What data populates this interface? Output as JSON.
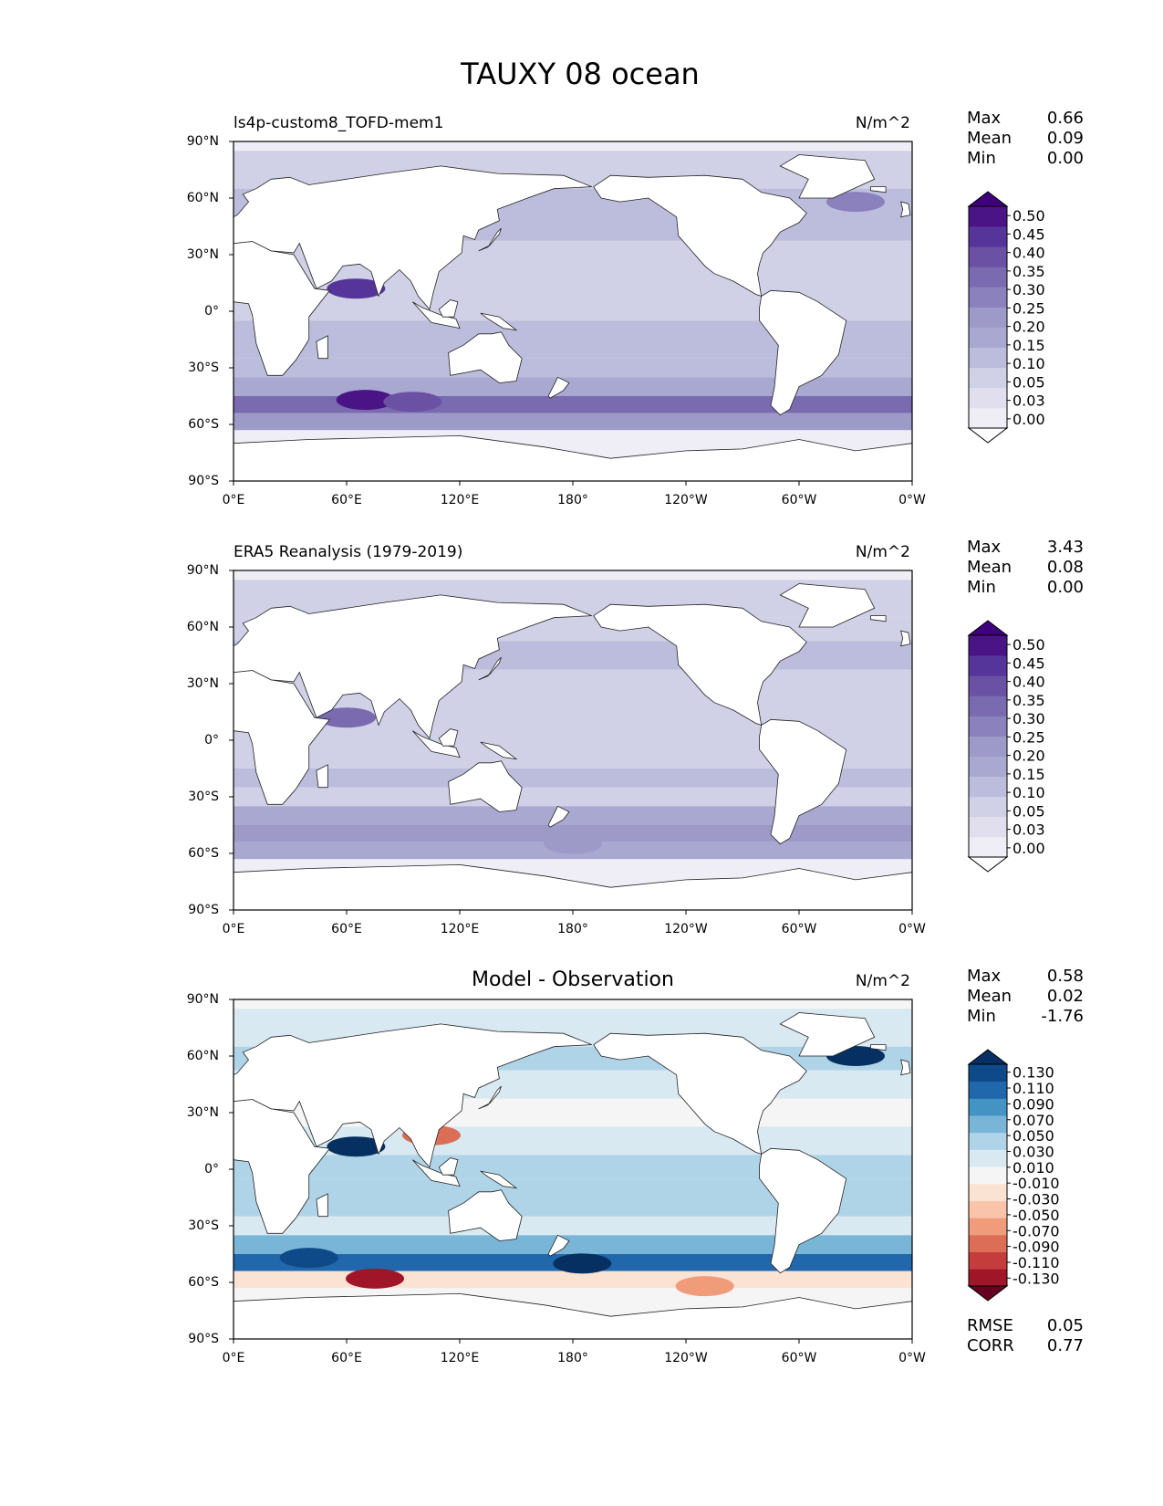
{
  "figure": {
    "title": "TAUXY 08 ocean"
  },
  "chart_data": [
    {
      "type": "heatmap",
      "title": "ls4p-custom8_TOFD-mem1",
      "units": "N/m^2",
      "x_ticks": [
        "0°E",
        "60°E",
        "120°E",
        "180°",
        "120°W",
        "60°W",
        "0°W"
      ],
      "y_ticks": [
        "90°N",
        "60°N",
        "30°N",
        "0°",
        "30°S",
        "60°S",
        "90°S"
      ],
      "xlim": [
        0,
        360
      ],
      "ylim": [
        -90,
        90
      ],
      "stats": {
        "max_label": "Max",
        "mean_label": "Mean",
        "min_label": "Min",
        "max": "0.66",
        "mean": "0.09",
        "min": "0.00"
      },
      "colorbar": {
        "levels": [
          "0.00",
          "0.03",
          "0.05",
          "0.10",
          "0.15",
          "0.20",
          "0.25",
          "0.30",
          "0.35",
          "0.40",
          "0.45",
          "0.50"
        ],
        "colors": [
          "#fcfbfd",
          "#efedf5",
          "#e1dfee",
          "#d0d1e6",
          "#bcbddc",
          "#a9a8d1",
          "#9e9ac8",
          "#8a81bd",
          "#7a6aaf",
          "#6a51a3",
          "#56359a",
          "#4a1486",
          "#3f007d"
        ]
      },
      "bands": [
        {
          "lat": 70,
          "value": 0.06
        },
        {
          "lat": 60,
          "value": 0.1
        },
        {
          "lat": 45,
          "value": 0.12
        },
        {
          "lat": 30,
          "value": 0.09
        },
        {
          "lat": 15,
          "value": 0.07
        },
        {
          "lat": 0,
          "value": 0.06
        },
        {
          "lat": -10,
          "value": 0.1
        },
        {
          "lat": -20,
          "value": 0.12
        },
        {
          "lat": -30,
          "value": 0.1
        },
        {
          "lat": -40,
          "value": 0.18
        },
        {
          "lat": -50,
          "value": 0.3
        },
        {
          "lat": -58,
          "value": 0.22
        }
      ],
      "hotspots": [
        {
          "lon": 65,
          "lat": 12,
          "value": 0.42
        },
        {
          "lon": 70,
          "lat": -47,
          "value": 0.45
        },
        {
          "lon": 95,
          "lat": -48,
          "value": 0.35
        },
        {
          "lon": 330,
          "lat": 58,
          "value": 0.25
        }
      ]
    },
    {
      "type": "heatmap",
      "title": "ERA5 Reanalysis (1979-2019)",
      "units": "N/m^2",
      "x_ticks": [
        "0°E",
        "60°E",
        "120°E",
        "180°",
        "120°W",
        "60°W",
        "0°W"
      ],
      "y_ticks": [
        "90°N",
        "60°N",
        "30°N",
        "0°",
        "30°S",
        "60°S",
        "90°S"
      ],
      "xlim": [
        0,
        360
      ],
      "ylim": [
        -90,
        90
      ],
      "stats": {
        "max_label": "Max",
        "mean_label": "Mean",
        "min_label": "Min",
        "max": "3.43",
        "mean": "0.08",
        "min": "0.00"
      },
      "colorbar": {
        "levels": [
          "0.00",
          "0.03",
          "0.05",
          "0.10",
          "0.15",
          "0.20",
          "0.25",
          "0.30",
          "0.35",
          "0.40",
          "0.45",
          "0.50"
        ],
        "colors": [
          "#fcfbfd",
          "#efedf5",
          "#e1dfee",
          "#d0d1e6",
          "#bcbddc",
          "#a9a8d1",
          "#9e9ac8",
          "#8a81bd",
          "#7a6aaf",
          "#6a51a3",
          "#56359a",
          "#4a1486",
          "#3f007d"
        ]
      },
      "bands": [
        {
          "lat": 70,
          "value": 0.05
        },
        {
          "lat": 60,
          "value": 0.08
        },
        {
          "lat": 45,
          "value": 0.1
        },
        {
          "lat": 30,
          "value": 0.08
        },
        {
          "lat": 15,
          "value": 0.06
        },
        {
          "lat": 0,
          "value": 0.05
        },
        {
          "lat": -10,
          "value": 0.09
        },
        {
          "lat": -20,
          "value": 0.11
        },
        {
          "lat": -30,
          "value": 0.09
        },
        {
          "lat": -40,
          "value": 0.15
        },
        {
          "lat": -50,
          "value": 0.22
        },
        {
          "lat": -58,
          "value": 0.18
        }
      ],
      "hotspots": [
        {
          "lon": 60,
          "lat": 12,
          "value": 0.3
        },
        {
          "lon": 180,
          "lat": -55,
          "value": 0.22
        }
      ]
    },
    {
      "type": "heatmap",
      "title": "Model - Observation",
      "units": "N/m^2",
      "x_ticks": [
        "0°E",
        "60°E",
        "120°E",
        "180°",
        "120°W",
        "60°W",
        "0°W"
      ],
      "y_ticks": [
        "90°N",
        "60°N",
        "30°N",
        "0°",
        "30°S",
        "60°S",
        "90°S"
      ],
      "xlim": [
        0,
        360
      ],
      "ylim": [
        -90,
        90
      ],
      "stats": {
        "max_label": "Max",
        "mean_label": "Mean",
        "min_label": "Min",
        "max": "0.58",
        "mean": "0.02",
        "min": "-1.76"
      },
      "colorbar": {
        "levels": [
          "-0.130",
          "-0.110",
          "-0.090",
          "-0.070",
          "-0.050",
          "-0.030",
          "-0.010",
          "0.010",
          "0.030",
          "0.050",
          "0.070",
          "0.090",
          "0.110",
          "0.130"
        ],
        "colors": [
          "#67001f",
          "#a11529",
          "#c43c3c",
          "#dc6e57",
          "#f09c7b",
          "#f9c4a9",
          "#fbe3d4",
          "#f5f5f5",
          "#d8e9f1",
          "#b0d4e7",
          "#79b5d6",
          "#4393c3",
          "#2167ac",
          "#0e4a8a",
          "#053061"
        ]
      },
      "bands": [
        {
          "lat": 70,
          "value": 0.01
        },
        {
          "lat": 60,
          "value": 0.03
        },
        {
          "lat": 45,
          "value": 0.02
        },
        {
          "lat": 30,
          "value": 0.0
        },
        {
          "lat": 15,
          "value": 0.01
        },
        {
          "lat": 0,
          "value": 0.03
        },
        {
          "lat": -10,
          "value": 0.04
        },
        {
          "lat": -20,
          "value": 0.03
        },
        {
          "lat": -30,
          "value": 0.02
        },
        {
          "lat": -40,
          "value": 0.05
        },
        {
          "lat": -50,
          "value": 0.09
        },
        {
          "lat": -58,
          "value": -0.03
        }
      ],
      "hotspots": [
        {
          "lon": 65,
          "lat": 12,
          "value": 0.14
        },
        {
          "lon": 40,
          "lat": -47,
          "value": 0.12
        },
        {
          "lon": 185,
          "lat": -50,
          "value": 0.13
        },
        {
          "lon": 330,
          "lat": 60,
          "value": 0.14
        },
        {
          "lon": 75,
          "lat": -58,
          "value": -0.13
        },
        {
          "lon": 105,
          "lat": 18,
          "value": -0.08
        },
        {
          "lon": 250,
          "lat": -62,
          "value": -0.07
        }
      ],
      "metrics": {
        "rmse_label": "RMSE",
        "rmse": "0.05",
        "corr_label": "CORR",
        "corr": "0.77"
      }
    }
  ]
}
